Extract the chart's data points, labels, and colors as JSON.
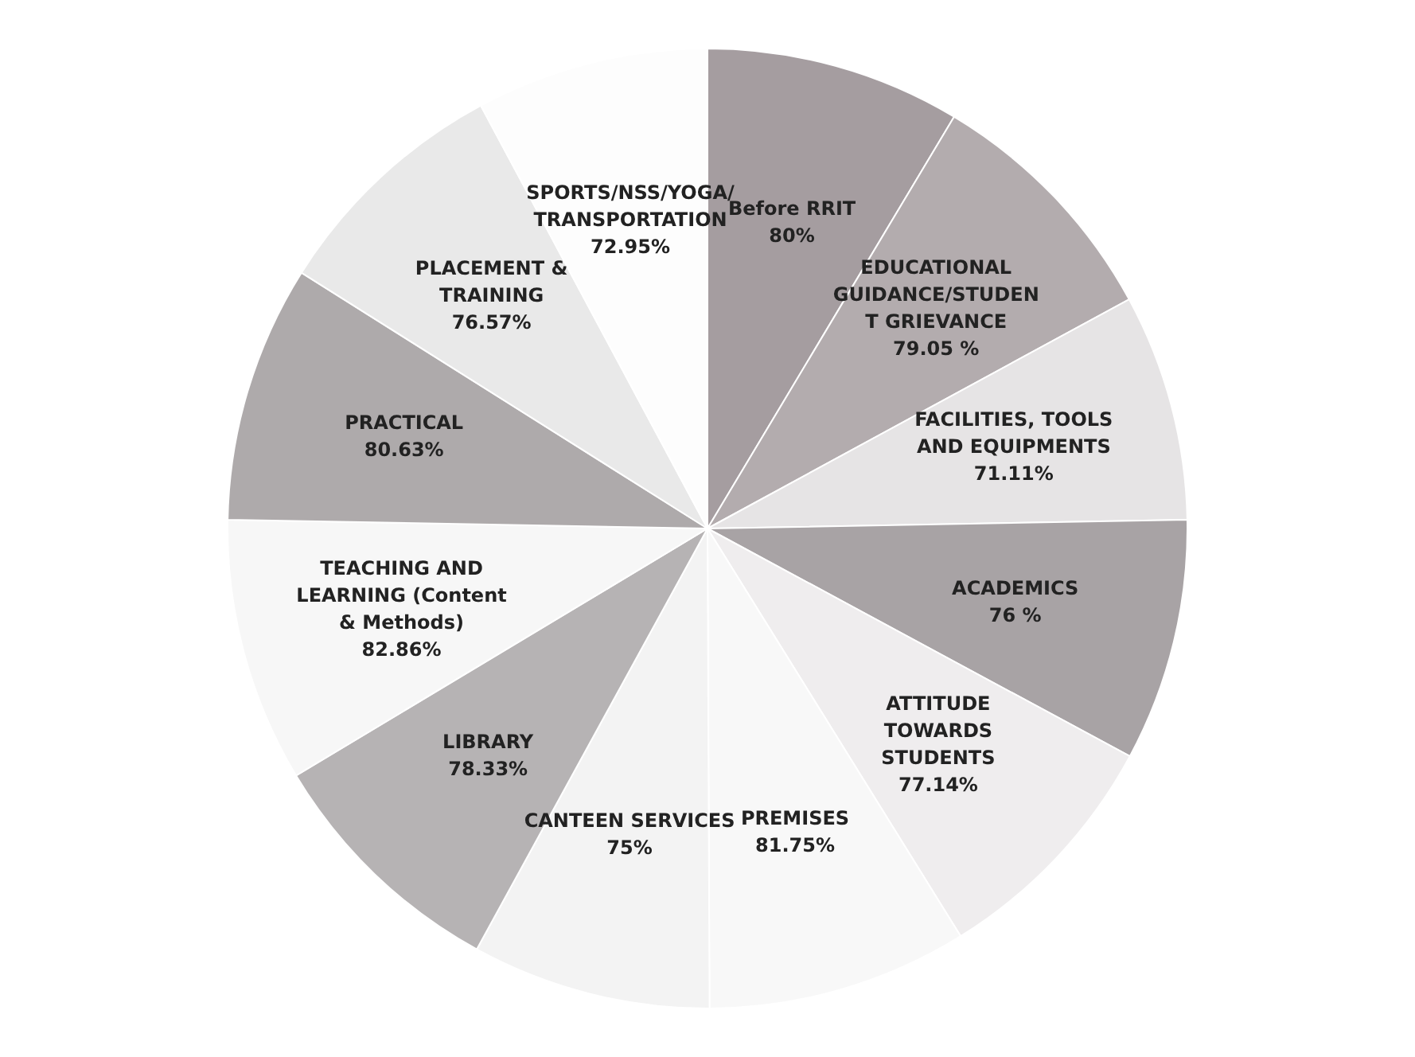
{
  "chart_data": {
    "type": "pie",
    "legend": false,
    "categories": [
      "Before RRIT",
      "EDUCATIONAL GUIDANCE/STUDENT GRIEVANCE",
      "FACILITIES, TOOLS AND EQUIPMENTS",
      "ACADEMICS",
      "ATTITUDE TOWARDS STUDENTS",
      "PREMISES",
      "CANTEEN SERVICES",
      "LIBRARY",
      "TEACHING AND LEARNING (Content & Methods)",
      "PRACTICAL",
      "PLACEMENT & TRAINING",
      "SPORTS/NSS/YOGA/TRANSPORTATION"
    ],
    "values": [
      80,
      79.05,
      71.11,
      76,
      77.14,
      81.75,
      75,
      78.33,
      82.86,
      80.63,
      76.57,
      72.95
    ],
    "value_labels": [
      "80%",
      "79.05 %",
      "71.11%",
      "76 %",
      "77.14%",
      "81.75%",
      "75%",
      "78.33%",
      "82.86%",
      "80.63%",
      "76.57%",
      "72.95%"
    ],
    "colors": [
      "#a59da0",
      "#b3acae",
      "#e6e4e5",
      "#a8a3a5",
      "#efedee",
      "#f8f8f8",
      "#f3f3f3",
      "#b6b3b4",
      "#f7f7f7",
      "#aeaaab",
      "#e9e9e9",
      "#fdfdfd"
    ]
  }
}
